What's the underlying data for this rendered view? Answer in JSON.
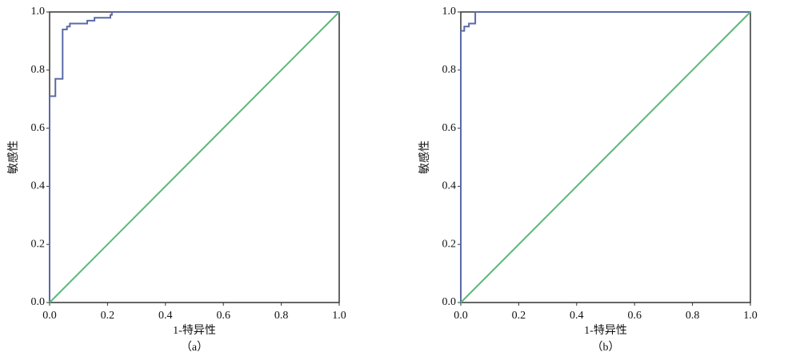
{
  "chart_data": [
    {
      "type": "line",
      "caption": "（a）",
      "xlabel": "1-特异性",
      "ylabel": "敏感性",
      "xlim": [
        0,
        1
      ],
      "ylim": [
        0,
        1
      ],
      "xticks": [
        {
          "value": 0,
          "label": "0.0"
        },
        0.2,
        0.4,
        0.6,
        0.8,
        {
          "value": 1,
          "label": "1.0"
        }
      ],
      "yticks": [
        {
          "value": 0,
          "label": "0.0"
        },
        0.2,
        0.4,
        0.6,
        0.8,
        {
          "value": 1,
          "label": "1.0"
        }
      ],
      "series": [
        {
          "color": "#5a6aa8",
          "x": [
            0,
            0,
            0.02,
            0.02,
            0.045,
            0.045,
            0.06,
            0.06,
            0.07,
            0.07,
            0.13,
            0.13,
            0.155,
            0.155,
            0.21,
            0.21,
            0.215,
            0.215,
            1
          ],
          "values": [
            0,
            0.71,
            0.71,
            0.77,
            0.77,
            0.94,
            0.94,
            0.95,
            0.95,
            0.96,
            0.96,
            0.97,
            0.97,
            0.98,
            0.98,
            0.99,
            0.99,
            1,
            1
          ]
        },
        {
          "color": "#5cb87a",
          "x": [
            0,
            1
          ],
          "values": [
            0,
            1
          ]
        }
      ]
    },
    {
      "type": "line",
      "caption": "（b）",
      "xlabel": "1-特异性",
      "ylabel": "敏感性",
      "xlim": [
        0,
        1
      ],
      "ylim": [
        0,
        1
      ],
      "xticks": [
        {
          "value": 0,
          "label": "0.0"
        },
        0.2,
        0.4,
        0.6,
        0.8,
        {
          "value": 1,
          "label": "1.0"
        }
      ],
      "yticks": [
        {
          "value": 0,
          "label": "0.0"
        },
        0.2,
        0.4,
        0.6,
        0.8,
        {
          "value": 1,
          "label": "1.0"
        }
      ],
      "series": [
        {
          "color": "#5a6aa8",
          "x": [
            0,
            0,
            0.012,
            0.012,
            0.028,
            0.028,
            0.05,
            0.05,
            1
          ],
          "values": [
            0,
            0.935,
            0.935,
            0.95,
            0.95,
            0.96,
            0.96,
            1,
            1
          ]
        },
        {
          "color": "#5cb87a",
          "x": [
            0,
            1
          ],
          "values": [
            0,
            1
          ]
        }
      ]
    }
  ]
}
